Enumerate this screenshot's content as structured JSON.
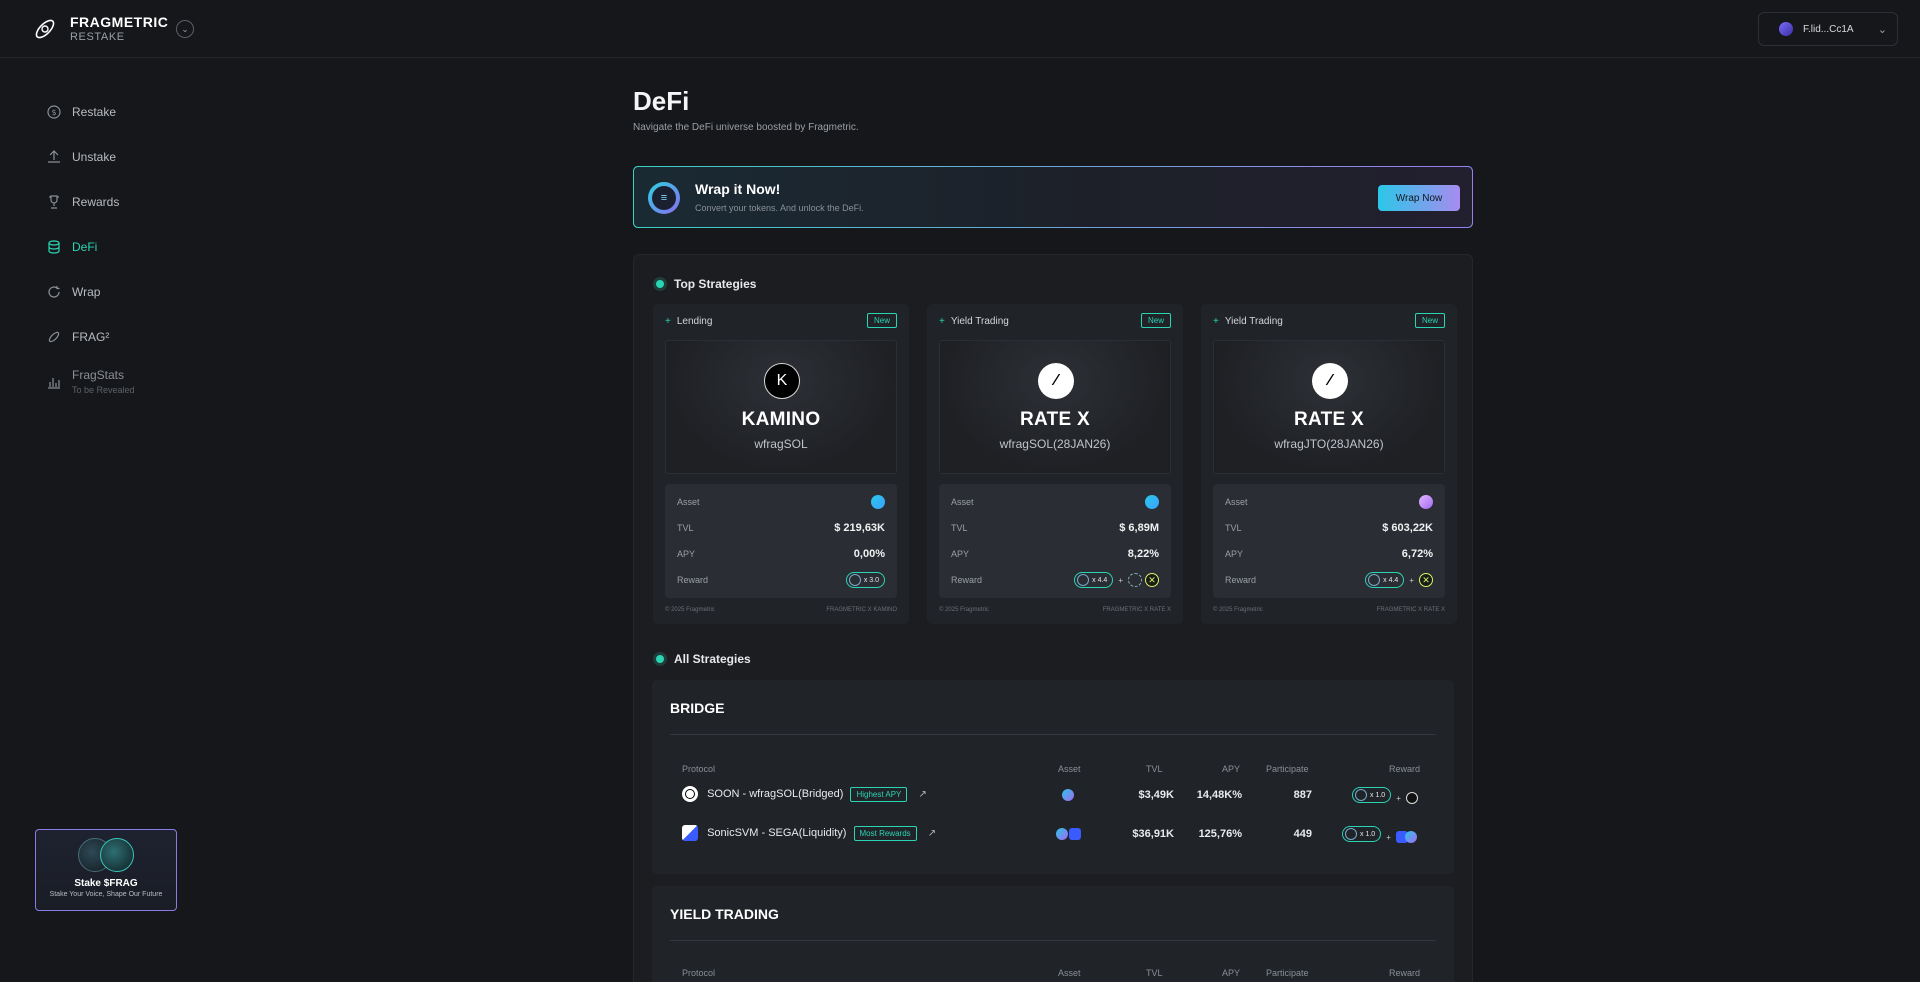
{
  "app": {
    "brand_name": "FRAGMETRIC",
    "brand_sub": "RESTAKE",
    "wallet": "F.lid...Cc1A"
  },
  "sidebar": {
    "items": [
      {
        "label": "Restake",
        "icon": "dollar-circle-icon"
      },
      {
        "label": "Unstake",
        "icon": "upload-icon"
      },
      {
        "label": "Rewards",
        "icon": "trophy-icon"
      },
      {
        "label": "DeFi",
        "icon": "database-icon",
        "active": true
      },
      {
        "label": "Wrap",
        "icon": "refresh-icon"
      },
      {
        "label": "FRAG²",
        "icon": "link-icon"
      },
      {
        "label": "FragStats",
        "sub": "To be Revealed",
        "icon": "bar-chart-icon"
      }
    ],
    "stake_card": {
      "title": "Stake $FRAG",
      "subtitle": "Stake Your Voice, Shape Our Future"
    }
  },
  "page": {
    "title": "DeFi",
    "subtitle": "Navigate the DeFi universe boosted by Fragmetric."
  },
  "wrap_banner": {
    "icon_glyph": "≡",
    "title": "Wrap it Now!",
    "subtitle": "Convert your tokens. And unlock the DeFi.",
    "button": "Wrap Now"
  },
  "top_strategies": {
    "title": "Top Strategies",
    "cards": [
      {
        "category": "Lending",
        "badge": "New",
        "logo_glyph": "K",
        "logo_style": "k",
        "name": "KAMINO",
        "token": "wfragSOL",
        "asset_label": "Asset",
        "tvl_label": "TVL",
        "apy_label": "APY",
        "reward_label": "Reward",
        "tvl": "$ 219,63K",
        "apy": "0,00%",
        "reward_mult": "x 3.0",
        "footer_left": "© 2025 Fragmetric",
        "footer_right": "FRAGMETRIC X KAMINO"
      },
      {
        "category": "Yield Trading",
        "badge": "New",
        "logo_glyph": "⁄",
        "logo_style": "r",
        "name": "RATE X",
        "token": "wfragSOL(28JAN26)",
        "asset_label": "Asset",
        "tvl_label": "TVL",
        "apy_label": "APY",
        "reward_label": "Reward",
        "tvl": "$ 6,89M",
        "apy": "8,22%",
        "reward_mult": "x 4.4",
        "plus": "+",
        "footer_left": "© 2025 Fragmetric",
        "footer_right": "FRAGMETRIC X RATE X"
      },
      {
        "category": "Yield Trading",
        "badge": "New",
        "logo_glyph": "⁄",
        "logo_style": "r",
        "name": "RATE X",
        "token": "wfragJTO(28JAN26)",
        "asset_label": "Asset",
        "tvl_label": "TVL",
        "apy_label": "APY",
        "reward_label": "Reward",
        "tvl": "$ 603,22K",
        "apy": "6,72%",
        "reward_mult": "x 4.4",
        "plus": "+",
        "footer_left": "© 2025 Fragmetric",
        "footer_right": "FRAGMETRIC X RATE X"
      }
    ]
  },
  "all_strategies": {
    "title": "All Strategies",
    "columns": [
      "Protocol",
      "Asset",
      "TVL",
      "APY",
      "Participate",
      "Reward"
    ],
    "bridge": {
      "name": "BRIDGE",
      "rows": [
        {
          "protocol": "SOON - wfragSOL(Bridged)",
          "badge": "Highest APY",
          "tvl": "$3,49K",
          "apy": "14,48K%",
          "participate": "887",
          "reward_mult": "x 1.0",
          "plus": "+"
        },
        {
          "protocol": "SonicSVM - SEGA(Liquidity)",
          "badge": "Most Rewards",
          "tvl": "$36,91K",
          "apy": "125,76%",
          "participate": "449",
          "reward_mult": "x 1.0",
          "plus": "+"
        }
      ]
    },
    "yield_trading": {
      "name": "YIELD TRADING"
    }
  },
  "colors": {
    "accent": "#2bd4b3",
    "background": "#15171a",
    "panel": "#1b1d21",
    "card": "#202328"
  }
}
